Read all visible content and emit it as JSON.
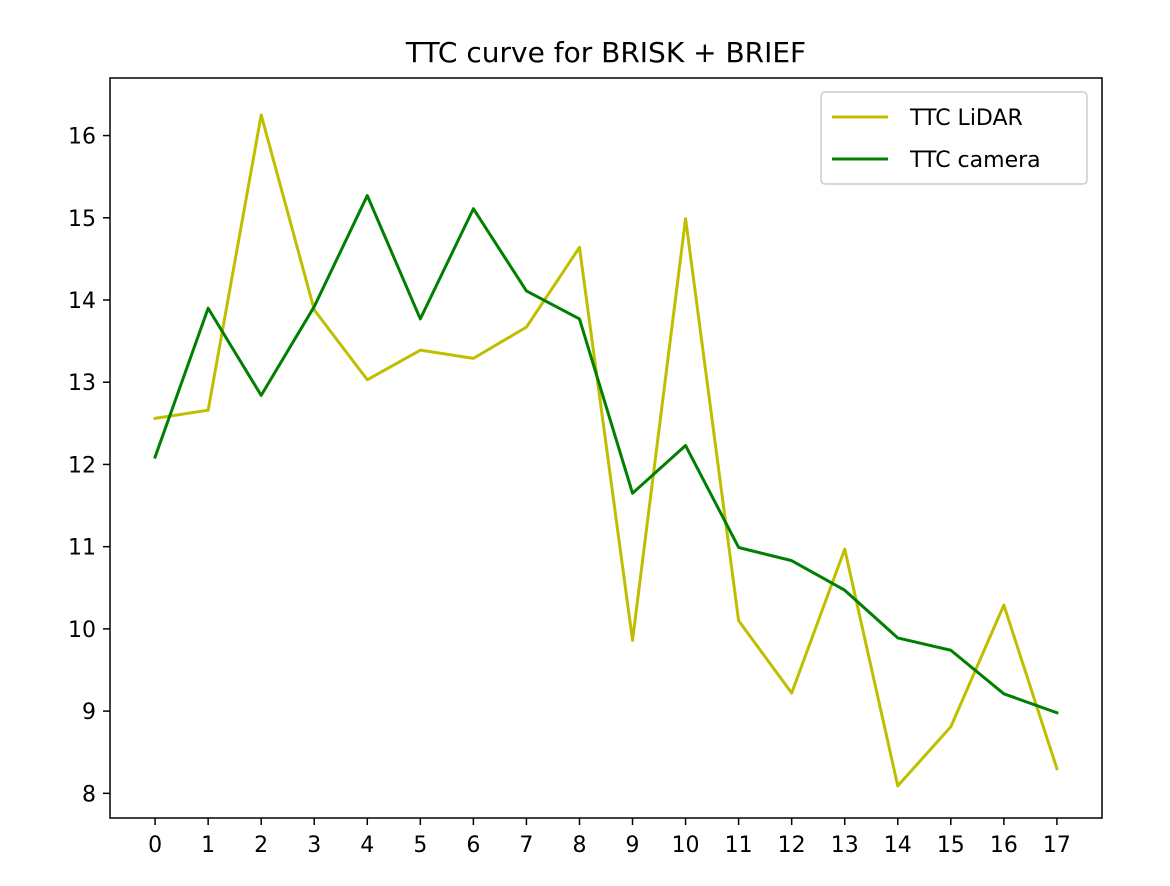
{
  "chart_data": {
    "type": "line",
    "title": "TTC curve for BRISK + BRIEF",
    "xlabel": "",
    "ylabel": "",
    "x": [
      0,
      1,
      2,
      3,
      4,
      5,
      6,
      7,
      8,
      9,
      10,
      11,
      12,
      13,
      14,
      15,
      16,
      17
    ],
    "xlim": [
      -0.85,
      17.85
    ],
    "ylim": [
      7.7,
      16.7
    ],
    "yticks": [
      8,
      9,
      10,
      11,
      12,
      13,
      14,
      15,
      16
    ],
    "grid": false,
    "legend_position": "top-right",
    "series": [
      {
        "name": "TTC LiDAR",
        "color": "#bfbf00",
        "values": [
          12.56,
          12.66,
          16.25,
          13.88,
          13.03,
          13.39,
          13.29,
          13.67,
          14.64,
          9.86,
          14.99,
          10.1,
          9.22,
          10.97,
          8.09,
          8.81,
          10.29,
          8.3
        ]
      },
      {
        "name": "TTC camera",
        "color": "#008000",
        "values": [
          12.09,
          13.9,
          12.84,
          13.92,
          15.27,
          13.77,
          15.11,
          14.11,
          13.77,
          11.65,
          12.23,
          10.99,
          10.83,
          10.47,
          9.89,
          9.74,
          9.21,
          8.98
        ]
      }
    ]
  }
}
